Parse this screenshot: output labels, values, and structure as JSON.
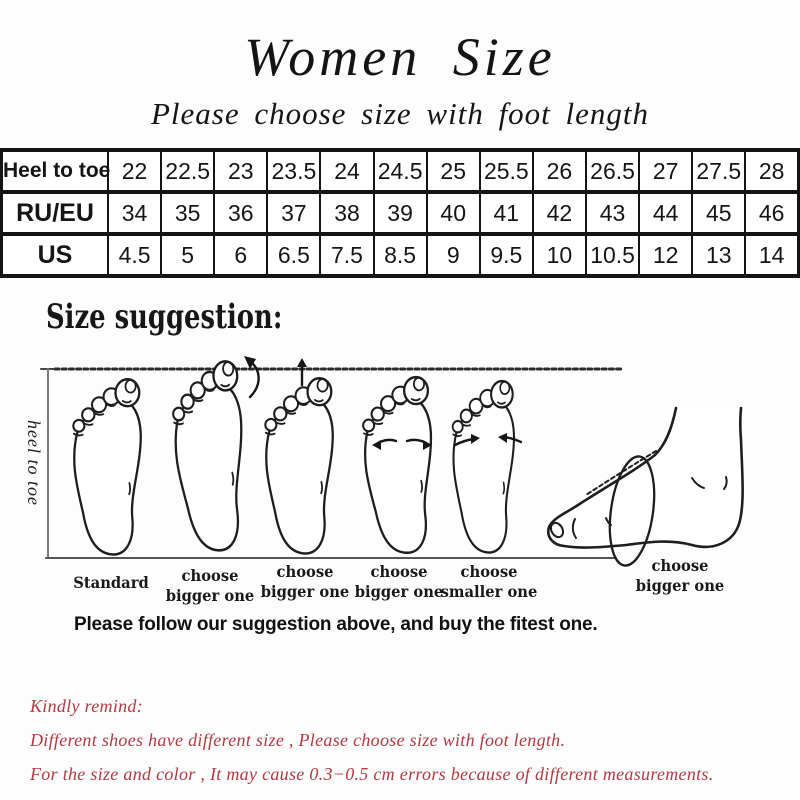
{
  "header": {
    "title": "Women Size",
    "subtitle": "Please choose size with foot length"
  },
  "size_table": {
    "rows": [
      {
        "label": "Heel to toe",
        "values": [
          "22",
          "22.5",
          "23",
          "23.5",
          "24",
          "24.5",
          "25",
          "25.5",
          "26",
          "26.5",
          "27",
          "27.5",
          "28"
        ]
      },
      {
        "label": "RU/EU",
        "values": [
          "34",
          "35",
          "36",
          "37",
          "38",
          "39",
          "40",
          "41",
          "42",
          "43",
          "44",
          "45",
          "46"
        ]
      },
      {
        "label": "US",
        "values": [
          "4.5",
          "5",
          "6",
          "6.5",
          "7.5",
          "8.5",
          "9",
          "9.5",
          "10",
          "10.5",
          "12",
          "13",
          "14"
        ]
      }
    ]
  },
  "suggestion": {
    "heading": "Size suggestion:",
    "axis_label": "heel to toe",
    "labels": [
      {
        "line1": "Standard",
        "line2": ""
      },
      {
        "line1": "choose",
        "line2": "bigger one"
      },
      {
        "line1": "choose",
        "line2": "bigger one"
      },
      {
        "line1": "choose",
        "line2": "bigger one"
      },
      {
        "line1": "choose",
        "line2": "smaller one"
      },
      {
        "line1": "choose",
        "line2": "bigger one"
      }
    ],
    "footnote": "Please follow our suggestion above, and buy the fitest one."
  },
  "remind": {
    "heading": "Kindly remind:",
    "line1": "Different shoes have different size , Please choose size with foot length.",
    "line2": "For the size and color , It may cause 0.3−0.5 cm errors because of different measurements.",
    "accent_color": "#b23a42"
  }
}
